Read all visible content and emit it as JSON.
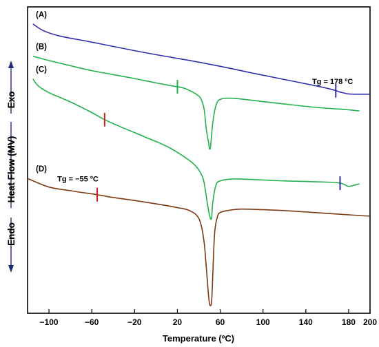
{
  "chart_data": {
    "type": "line",
    "xlabel": "Temperature (ºC)",
    "ylabel": {
      "endo": "Endo",
      "mid": "Heat Flow (MV)",
      "exo": "Exo"
    },
    "xlim": [
      -120,
      200
    ],
    "xticks": [
      -100,
      -60,
      -20,
      20,
      60,
      100,
      140,
      180,
      200
    ],
    "grid": false,
    "legend": "none",
    "series": [
      {
        "label": "(A)",
        "color": "#2f2fb0",
        "x": [
          -115,
          -105,
          -90,
          -60,
          -30,
          0,
          30,
          60,
          90,
          120,
          150,
          165,
          172,
          180,
          190,
          200
        ],
        "y": [
          0.944,
          0.922,
          0.905,
          0.885,
          0.864,
          0.844,
          0.826,
          0.806,
          0.784,
          0.763,
          0.742,
          0.73,
          0.722,
          0.716,
          0.715,
          0.715
        ],
        "markers": [
          {
            "x": 168,
            "color": "#2f2fb0"
          }
        ]
      },
      {
        "label": "(B)",
        "color": "#22b14c",
        "x": [
          -115,
          -100,
          -80,
          -60,
          -40,
          -20,
          0,
          15,
          25,
          32,
          38,
          42,
          45,
          47,
          49,
          50,
          51,
          53,
          56,
          60,
          70,
          90,
          120,
          150,
          180,
          190
        ],
        "y": [
          0.839,
          0.825,
          0.808,
          0.792,
          0.779,
          0.766,
          0.752,
          0.742,
          0.736,
          0.726,
          0.714,
          0.7,
          0.665,
          0.6,
          0.56,
          0.538,
          0.545,
          0.62,
          0.678,
          0.698,
          0.702,
          0.695,
          0.683,
          0.672,
          0.664,
          0.66
        ],
        "markers": [
          {
            "x": 20,
            "color": "#22b14c"
          }
        ]
      },
      {
        "label": "(C)",
        "color": "#22b14c",
        "x": [
          -115,
          -110,
          -100,
          -80,
          -60,
          -48,
          -30,
          -10,
          10,
          25,
          35,
          40,
          44,
          46,
          48,
          50,
          51,
          52,
          53,
          56,
          60,
          70,
          80,
          100,
          120,
          140,
          160,
          170,
          175,
          180,
          185,
          190
        ],
        "y": [
          0.765,
          0.742,
          0.72,
          0.69,
          0.655,
          0.632,
          0.604,
          0.575,
          0.545,
          0.514,
          0.488,
          0.468,
          0.44,
          0.405,
          0.358,
          0.32,
          0.308,
          0.312,
          0.36,
          0.418,
          0.432,
          0.438,
          0.438,
          0.435,
          0.432,
          0.43,
          0.428,
          0.426,
          0.422,
          0.414,
          0.418,
          0.422
        ],
        "markers": [
          {
            "x": -48,
            "color": "#cc2222"
          },
          {
            "x": 172,
            "color": "#2f2fb0"
          }
        ]
      },
      {
        "label": "(D)",
        "color": "#7b3a10",
        "x": [
          -120,
          -100,
          -80,
          -55,
          -40,
          -20,
          0,
          20,
          30,
          38,
          42,
          45,
          47,
          49,
          50,
          51,
          52,
          53,
          54,
          55,
          57,
          60,
          70,
          80,
          100,
          130,
          160,
          190,
          200
        ],
        "y": [
          0.44,
          0.412,
          0.4,
          0.387,
          0.378,
          0.368,
          0.357,
          0.345,
          0.337,
          0.32,
          0.29,
          0.23,
          0.15,
          0.06,
          0.032,
          0.025,
          0.04,
          0.12,
          0.21,
          0.27,
          0.31,
          0.329,
          0.337,
          0.34,
          0.338,
          0.333,
          0.326,
          0.319,
          0.317
        ],
        "markers": [
          {
            "x": -55,
            "color": "#cc2222"
          }
        ]
      }
    ],
    "annotations": [
      {
        "text": "Tg = 178 ºC",
        "x": 165,
        "y": 0.748
      },
      {
        "text": "Tg = −55 ºC",
        "x": -73,
        "y": 0.43
      }
    ]
  }
}
